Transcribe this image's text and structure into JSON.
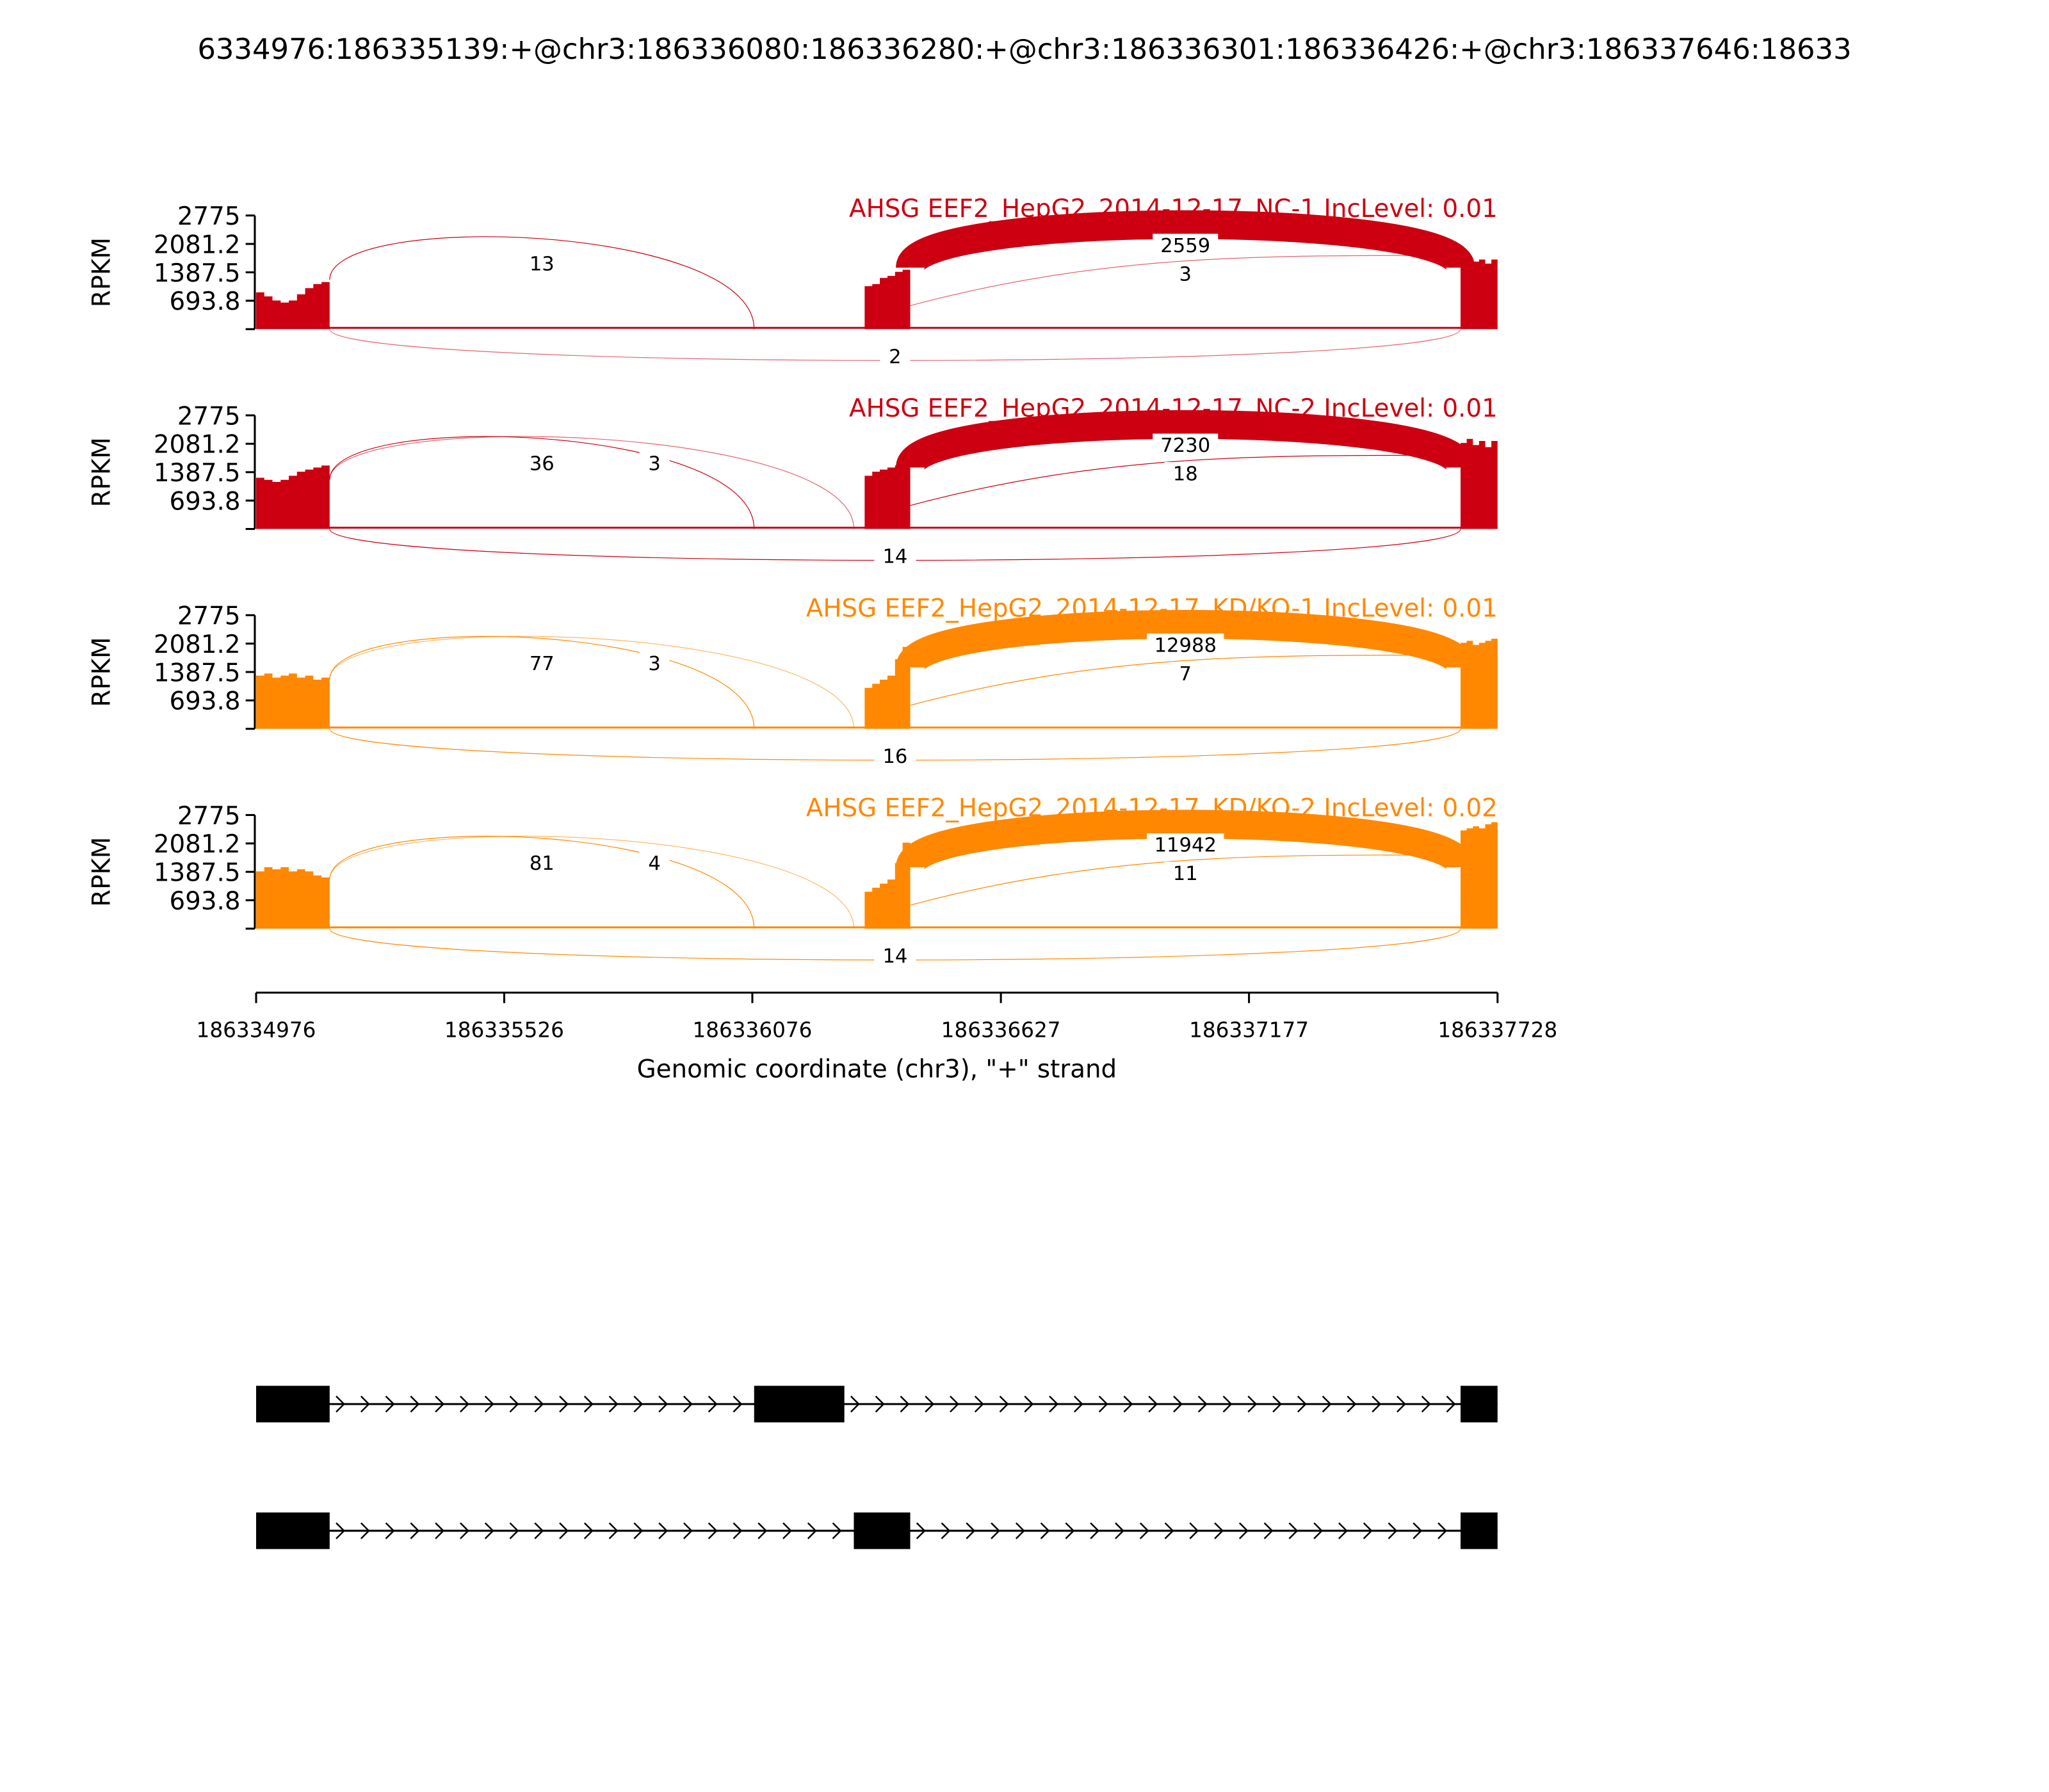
{
  "chart_data": {
    "type": "area",
    "title": "6334976:186335139:+@chr3:186336080:186336280:+@chr3:186336301:186336426:+@chr3:186337646:18633",
    "xlabel": "Genomic coordinate (chr3), \"+\" strand",
    "ylabel": "RPKM",
    "xlim": [
      186334976,
      186337728
    ],
    "xticks": [
      "186334976",
      "186335526",
      "186336076",
      "186336627",
      "186337177",
      "186337728"
    ],
    "ylim": [
      0,
      2775
    ],
    "yticks": [
      "693.8",
      "1387.5",
      "2081.2",
      "2775"
    ],
    "panels": [
      {
        "name": "AHSG EEF2_HepG2_2014-12-17_NC-1 IncLevel: 0.01",
        "color": "#cc0011",
        "coverage": [
          {
            "start": 186334976,
            "end": 186335139,
            "values": [
              900,
              800,
              700,
              650,
              700,
              850,
              1000,
              1100,
              1150
            ]
          },
          {
            "start": 186336325,
            "end": 186336426,
            "values": [
              1050,
              1100,
              1250,
              1300,
              1400,
              1450
            ]
          },
          {
            "start": 186337646,
            "end": 186337728,
            "values": [
              1700,
              1750,
              1650,
              1700,
              1600,
              1700
            ]
          }
        ],
        "junctions": [
          {
            "start": 186335139,
            "end": 186336080,
            "count": 13,
            "side": "above"
          },
          {
            "start": 186336426,
            "end": 186337646,
            "count": 2559,
            "side": "above"
          },
          {
            "start": 186336426,
            "end": 186337646,
            "count": 3,
            "side": "above-low"
          },
          {
            "start": 186335139,
            "end": 186337646,
            "count": 2,
            "side": "below"
          }
        ]
      },
      {
        "name": "AHSG EEF2_HepG2_2014-12-17_NC-2 IncLevel: 0.01",
        "color": "#cc0011",
        "coverage": [
          {
            "start": 186334976,
            "end": 186335139,
            "values": [
              1250,
              1200,
              1150,
              1200,
              1300,
              1400,
              1450,
              1500,
              1550
            ]
          },
          {
            "start": 186336325,
            "end": 186336426,
            "values": [
              1300,
              1400,
              1450,
              1500,
              1550,
              1650
            ]
          },
          {
            "start": 186337646,
            "end": 186337728,
            "values": [
              2100,
              2200,
              2050,
              2150,
              2000,
              2150
            ]
          }
        ],
        "junctions": [
          {
            "start": 186335139,
            "end": 186336080,
            "count": 36,
            "side": "above"
          },
          {
            "start": 186335139,
            "end": 186336301,
            "count": 3,
            "side": "above"
          },
          {
            "start": 186336426,
            "end": 186337646,
            "count": 7230,
            "side": "above"
          },
          {
            "start": 186336426,
            "end": 186337646,
            "count": 18,
            "side": "above-low"
          },
          {
            "start": 186335139,
            "end": 186337646,
            "count": 14,
            "side": "below"
          }
        ]
      },
      {
        "name": "AHSG EEF2_HepG2_2014-12-17_KD/KO-1 IncLevel: 0.01",
        "color": "#ff8800",
        "coverage": [
          {
            "start": 186334976,
            "end": 186335139,
            "values": [
              1300,
              1350,
              1250,
              1300,
              1350,
              1250,
              1300,
              1200,
              1250
            ]
          },
          {
            "start": 186336325,
            "end": 186336426,
            "values": [
              1000,
              1100,
              1200,
              1300,
              1700,
              2000
            ]
          },
          {
            "start": 186337646,
            "end": 186337728,
            "values": [
              2100,
              2150,
              2050,
              2100,
              2150,
              2200
            ]
          }
        ],
        "junctions": [
          {
            "start": 186335139,
            "end": 186336080,
            "count": 77,
            "side": "above"
          },
          {
            "start": 186335139,
            "end": 186336301,
            "count": 3,
            "side": "above"
          },
          {
            "start": 186336426,
            "end": 186337646,
            "count": 12988,
            "side": "above"
          },
          {
            "start": 186336426,
            "end": 186337646,
            "count": 7,
            "side": "above-low"
          },
          {
            "start": 186335139,
            "end": 186337646,
            "count": 16,
            "side": "below"
          }
        ]
      },
      {
        "name": "AHSG EEF2_HepG2_2014-12-17_KD/KO-2 IncLevel: 0.02",
        "color": "#ff8800",
        "coverage": [
          {
            "start": 186334976,
            "end": 186335139,
            "values": [
              1400,
              1500,
              1450,
              1500,
              1400,
              1450,
              1400,
              1300,
              1250
            ]
          },
          {
            "start": 186336325,
            "end": 186336426,
            "values": [
              900,
              1000,
              1100,
              1200,
              1600,
              2100
            ]
          },
          {
            "start": 186337646,
            "end": 186337728,
            "values": [
              2400,
              2450,
              2500,
              2450,
              2550,
              2600
            ]
          }
        ],
        "junctions": [
          {
            "start": 186335139,
            "end": 186336080,
            "count": 81,
            "side": "above"
          },
          {
            "start": 186335139,
            "end": 186336301,
            "count": 4,
            "side": "above"
          },
          {
            "start": 186336426,
            "end": 186337646,
            "count": 11942,
            "side": "above"
          },
          {
            "start": 186336426,
            "end": 186337646,
            "count": 11,
            "side": "above-low"
          },
          {
            "start": 186335139,
            "end": 186337646,
            "count": 14,
            "side": "below"
          }
        ]
      }
    ],
    "transcripts": [
      {
        "exons": [
          [
            186334976,
            186335139
          ],
          [
            186336080,
            186336280
          ],
          [
            186337646,
            186337728
          ]
        ]
      },
      {
        "exons": [
          [
            186334976,
            186335139
          ],
          [
            186336301,
            186336426
          ],
          [
            186337646,
            186337728
          ]
        ]
      }
    ]
  }
}
